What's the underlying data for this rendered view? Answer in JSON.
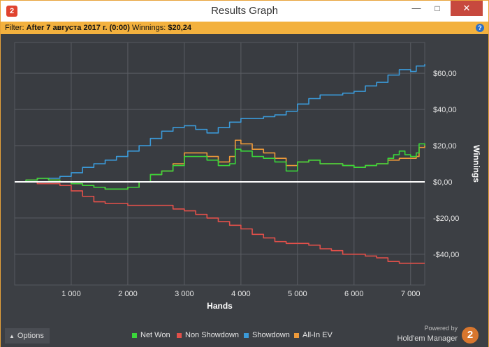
{
  "window": {
    "title": "Results Graph",
    "app_icon": "2",
    "minimize": "—",
    "maximize": "□",
    "close": "✕"
  },
  "filter": {
    "label": "Filter:",
    "value": "After 7 августа 2017 г. (0:00)",
    "winnings_label": "Winnings:",
    "winnings_value": "$20,24",
    "help_icon": "?"
  },
  "chart_data": {
    "type": "line",
    "xlabel": "Hands",
    "ylabel": "Winnings",
    "xlim": [
      0,
      7250
    ],
    "ylim": [
      -57,
      77
    ],
    "x_ticks": [
      1000,
      2000,
      3000,
      4000,
      5000,
      6000,
      7000
    ],
    "x_tick_labels": [
      "1 000",
      "2 000",
      "3 000",
      "4 000",
      "5 000",
      "6 000",
      "7 000"
    ],
    "y_ticks": [
      60,
      40,
      20,
      0,
      -20,
      -40
    ],
    "y_tick_labels": [
      "$60,00",
      "$40,00",
      "$20,00",
      "$0,00",
      "-$20,00",
      "-$40,00"
    ],
    "grid": true,
    "colors": {
      "net_won": "#3ad63a",
      "non_showdown": "#e2504a",
      "showdown": "#3b9ad9",
      "all_in_ev": "#ee9a3a",
      "zero_line": "#ffffff",
      "grid": "#5a5d63"
    },
    "series": [
      {
        "name": "Net Won",
        "key": "net_won",
        "x": [
          0,
          200,
          400,
          600,
          800,
          1000,
          1200,
          1400,
          1600,
          1800,
          2000,
          2200,
          2400,
          2600,
          2800,
          3000,
          3200,
          3400,
          3600,
          3800,
          3900,
          4000,
          4200,
          4400,
          4600,
          4800,
          5000,
          5200,
          5400,
          5600,
          5800,
          6000,
          6200,
          6400,
          6600,
          6700,
          6800,
          6900,
          7000,
          7100,
          7150,
          7250
        ],
        "y": [
          0,
          1,
          2,
          1,
          0,
          -1,
          -2,
          -3,
          -4,
          -4,
          -3,
          0,
          4,
          6,
          9,
          14,
          14,
          12,
          9,
          10,
          18,
          17,
          14,
          13,
          11,
          6,
          11,
          12,
          10,
          10,
          9,
          8,
          9,
          10,
          13,
          15,
          17,
          15,
          14,
          16,
          21,
          20
        ]
      },
      {
        "name": "Non Showdown",
        "key": "non_showdown",
        "x": [
          0,
          400,
          800,
          1000,
          1200,
          1400,
          1600,
          1800,
          2000,
          2400,
          2800,
          3000,
          3200,
          3400,
          3600,
          3800,
          4000,
          4200,
          4400,
          4600,
          4800,
          5000,
          5200,
          5400,
          5600,
          5800,
          6000,
          6200,
          6400,
          6600,
          6800,
          7000,
          7250
        ],
        "y": [
          0,
          -1,
          -2,
          -5,
          -8,
          -11,
          -12,
          -12,
          -13,
          -13,
          -15,
          -16,
          -18,
          -20,
          -22,
          -24,
          -26,
          -29,
          -31,
          -33,
          -34,
          -34,
          -35,
          -37,
          -38,
          -40,
          -40,
          -41,
          -42,
          -44,
          -45,
          -45,
          -45
        ]
      },
      {
        "name": "Showdown",
        "key": "showdown",
        "x": [
          0,
          200,
          400,
          600,
          800,
          1000,
          1200,
          1400,
          1600,
          1800,
          2000,
          2200,
          2400,
          2600,
          2800,
          3000,
          3200,
          3400,
          3600,
          3800,
          4000,
          4200,
          4400,
          4600,
          4800,
          5000,
          5200,
          5400,
          5600,
          5800,
          6000,
          6200,
          6400,
          6600,
          6800,
          7000,
          7100,
          7250
        ],
        "y": [
          0,
          1,
          2,
          2,
          3,
          5,
          8,
          10,
          12,
          14,
          17,
          20,
          24,
          28,
          30,
          31,
          29,
          27,
          30,
          33,
          35,
          35,
          36,
          37,
          39,
          43,
          46,
          48,
          48,
          49,
          50,
          53,
          55,
          59,
          62,
          61,
          64,
          65
        ]
      },
      {
        "name": "All-In EV",
        "key": "all_in_ev",
        "x": [
          0,
          200,
          400,
          600,
          800,
          1000,
          1200,
          1400,
          1600,
          1800,
          2000,
          2200,
          2400,
          2600,
          2800,
          3000,
          3200,
          3400,
          3600,
          3800,
          3900,
          4000,
          4200,
          4400,
          4600,
          4800,
          5000,
          5200,
          5400,
          5600,
          5800,
          6000,
          6200,
          6400,
          6600,
          6800,
          7000,
          7100,
          7150,
          7250
        ],
        "y": [
          0,
          1,
          2,
          1,
          0,
          -1,
          -2,
          -3,
          -4,
          -4,
          -3,
          0,
          4,
          6,
          10,
          16,
          16,
          14,
          11,
          14,
          23,
          21,
          18,
          16,
          13,
          9,
          11,
          12,
          10,
          10,
          9,
          8,
          9,
          10,
          12,
          13,
          13,
          14,
          19,
          20
        ]
      }
    ]
  },
  "legend": [
    {
      "label": "Net Won",
      "color": "#3ad63a"
    },
    {
      "label": "Non Showdown",
      "color": "#e2504a"
    },
    {
      "label": "Showdown",
      "color": "#3b9ad9"
    },
    {
      "label": "All-In EV",
      "color": "#ee9a3a"
    }
  ],
  "footer": {
    "options_icon": "▲",
    "options_label": "Options",
    "powered_by": "Powered by",
    "brand": "Hold'em Manager",
    "brand_logo": "2"
  }
}
